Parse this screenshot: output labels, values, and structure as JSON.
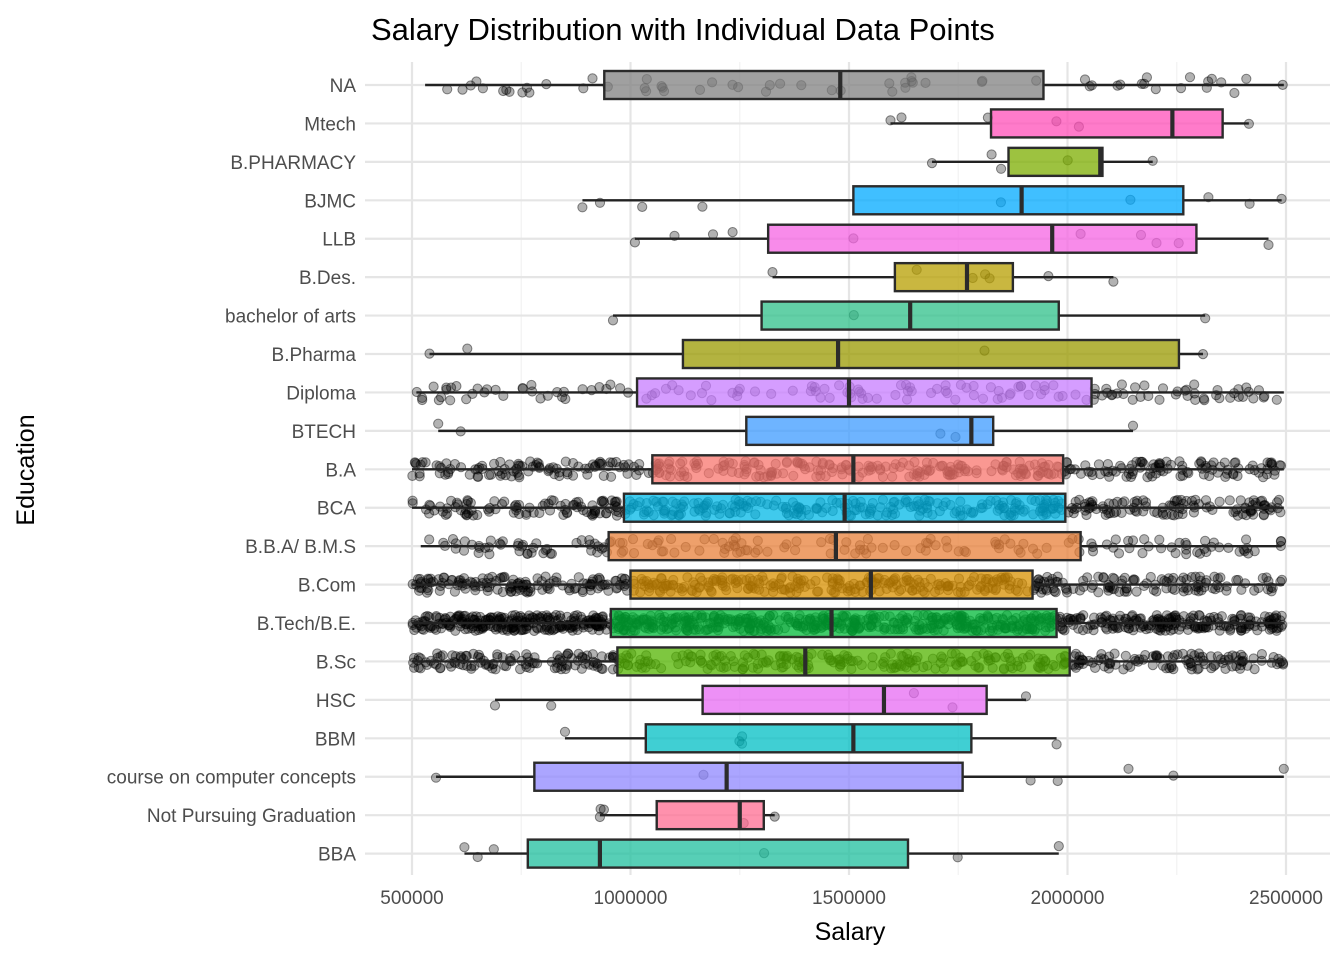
{
  "chart_data": {
    "type": "boxplot",
    "title": "Salary Distribution with Individual Data Points",
    "xlabel": "Salary",
    "ylabel": "Education",
    "xlim": [
      500000,
      2500000
    ],
    "x_ticks": [
      "500000",
      "1000000",
      "1500000",
      "2000000",
      "2500000"
    ],
    "x_tick_values": [
      500000,
      1000000,
      1500000,
      2000000,
      2500000
    ],
    "grid": true,
    "legend": "none",
    "categories": [
      {
        "label": "NA",
        "color": "#808080",
        "whisker_low": 530000,
        "q1": 940000,
        "median": 1480000,
        "q3": 1945000,
        "whisker_high": 2495000,
        "density": 60
      },
      {
        "label": "Mtech",
        "color": "#FF4FB8",
        "whisker_low": 1595000,
        "q1": 1825000,
        "median": 2240000,
        "q3": 2355000,
        "whisker_high": 2415000,
        "density": 6
      },
      {
        "label": "B.PHARMACY",
        "color": "#7CAE00",
        "whisker_low": 1690000,
        "q1": 1865000,
        "median": 2075000,
        "q3": 2080000,
        "whisker_high": 2195000,
        "density": 5
      },
      {
        "label": "BJMC",
        "color": "#00A9FF",
        "whisker_low": 890000,
        "q1": 1510000,
        "median": 1895000,
        "q3": 2265000,
        "whisker_high": 2490000,
        "density": 9
      },
      {
        "label": "LLB",
        "color": "#F564E3",
        "whisker_low": 1010000,
        "q1": 1315000,
        "median": 1965000,
        "q3": 2295000,
        "whisker_high": 2460000,
        "density": 10
      },
      {
        "label": "B.Des.",
        "color": "#B79F00",
        "whisker_low": 1325000,
        "q1": 1605000,
        "median": 1770000,
        "q3": 1875000,
        "whisker_high": 2105000,
        "density": 7
      },
      {
        "label": "bachelor of arts",
        "color": "#2FC08A",
        "whisker_low": 960000,
        "q1": 1300000,
        "median": 1640000,
        "q3": 1980000,
        "whisker_high": 2315000,
        "density": 3
      },
      {
        "label": "B.Pharma",
        "color": "#999900",
        "whisker_low": 540000,
        "q1": 1120000,
        "median": 1475000,
        "q3": 2255000,
        "whisker_high": 2310000,
        "density": 4
      },
      {
        "label": "Diploma",
        "color": "#C77CFF",
        "whisker_low": 510000,
        "q1": 1015000,
        "median": 1500000,
        "q3": 2055000,
        "whisker_high": 2495000,
        "density": 150
      },
      {
        "label": "BTECH",
        "color": "#3E9BFF",
        "whisker_low": 560000,
        "q1": 1265000,
        "median": 1780000,
        "q3": 1830000,
        "whisker_high": 2150000,
        "density": 5
      },
      {
        "label": "B.A",
        "color": "#F8766D",
        "whisker_low": 500000,
        "q1": 1050000,
        "median": 1510000,
        "q3": 1990000,
        "whisker_high": 2495000,
        "density": 380
      },
      {
        "label": "BCA",
        "color": "#00B8E7",
        "whisker_low": 500000,
        "q1": 985000,
        "median": 1490000,
        "q3": 1995000,
        "whisker_high": 2495000,
        "density": 420
      },
      {
        "label": "B.B.A/ B.M.S",
        "color": "#E8803A",
        "whisker_low": 520000,
        "q1": 950000,
        "median": 1470000,
        "q3": 2030000,
        "whisker_high": 2490000,
        "density": 170
      },
      {
        "label": "B.Com",
        "color": "#D89000",
        "whisker_low": 500000,
        "q1": 1000000,
        "median": 1550000,
        "q3": 1920000,
        "whisker_high": 2495000,
        "density": 480
      },
      {
        "label": "B.Tech/B.E.",
        "color": "#00BA38",
        "whisker_low": 500000,
        "q1": 955000,
        "median": 1460000,
        "q3": 1975000,
        "whisker_high": 2495000,
        "density": 900
      },
      {
        "label": "B.Sc",
        "color": "#53B400",
        "whisker_low": 500000,
        "q1": 970000,
        "median": 1400000,
        "q3": 2005000,
        "whisker_high": 2495000,
        "density": 420
      },
      {
        "label": "HSC",
        "color": "#E76BF3",
        "whisker_low": 690000,
        "q1": 1165000,
        "median": 1580000,
        "q3": 1815000,
        "whisker_high": 1905000,
        "density": 5
      },
      {
        "label": "BBM",
        "color": "#00BFC4",
        "whisker_low": 850000,
        "q1": 1035000,
        "median": 1510000,
        "q3": 1780000,
        "whisker_high": 1975000,
        "density": 5
      },
      {
        "label": "course on computer concepts",
        "color": "#8F87FF",
        "whisker_low": 555000,
        "q1": 780000,
        "median": 1220000,
        "q3": 1760000,
        "whisker_high": 2495000,
        "density": 7
      },
      {
        "label": "Not Pursuing Graduation",
        "color": "#FF6C91",
        "whisker_low": 930000,
        "q1": 1060000,
        "median": 1250000,
        "q3": 1305000,
        "whisker_high": 1330000,
        "density": 5
      },
      {
        "label": "BBA",
        "color": "#1FBF9E",
        "whisker_low": 620000,
        "q1": 765000,
        "median": 930000,
        "q3": 1635000,
        "whisker_high": 1980000,
        "density": 6
      }
    ]
  }
}
